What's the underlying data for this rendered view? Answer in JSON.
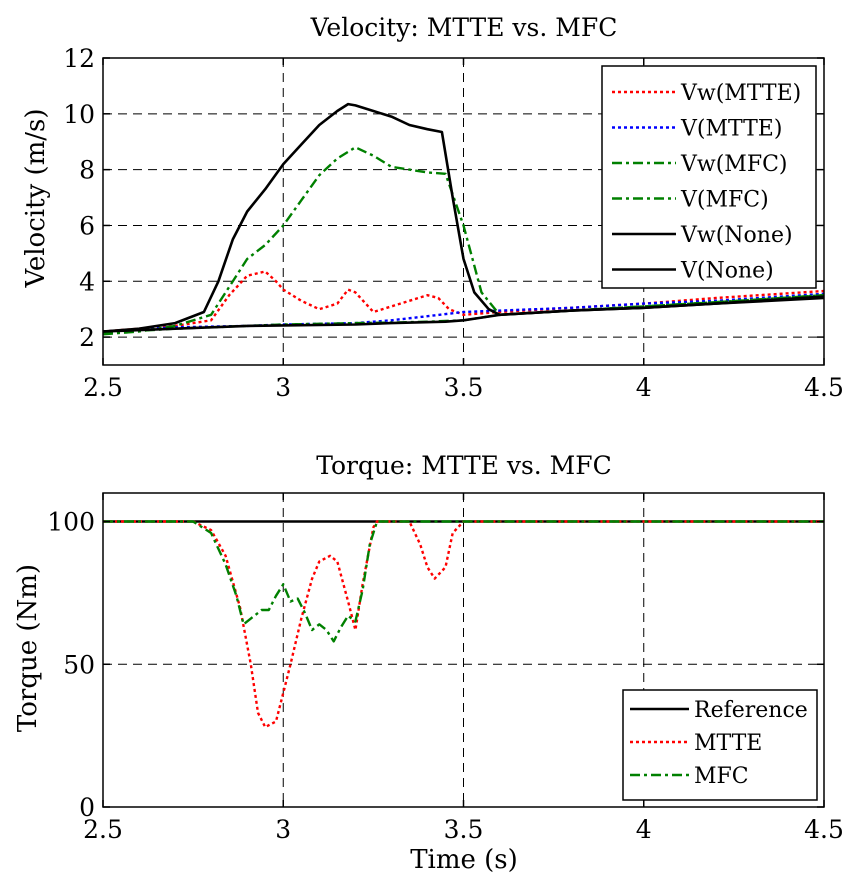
{
  "chart_data": [
    {
      "type": "line",
      "title": "Velocity: MTTE vs. MFC",
      "xlabel": "",
      "ylabel": "Velocity (m/s)",
      "xlim": [
        2.5,
        4.5
      ],
      "ylim": [
        1,
        12
      ],
      "xticks": [
        2.5,
        3,
        3.5,
        4,
        4.5
      ],
      "xtick_labels": [
        "2.5",
        "3",
        "3.5",
        "4",
        "4.5"
      ],
      "yticks": [
        2,
        4,
        6,
        8,
        10,
        12
      ],
      "ytick_labels": [
        "2",
        "4",
        "6",
        "8",
        "10",
        "12"
      ],
      "grid": true,
      "legend_position": "top-right",
      "series": [
        {
          "name": "Vw(MTTE)",
          "color": "#ff0000",
          "style": "dotted",
          "x": [
            2.5,
            2.6,
            2.7,
            2.8,
            2.85,
            2.9,
            2.95,
            2.98,
            3.0,
            3.05,
            3.1,
            3.15,
            3.18,
            3.2,
            3.25,
            3.3,
            3.35,
            3.4,
            3.43,
            3.46,
            3.5,
            3.55,
            3.6,
            3.8,
            4.0,
            4.2,
            4.5
          ],
          "y": [
            2.2,
            2.3,
            2.4,
            2.6,
            3.5,
            4.2,
            4.35,
            4.0,
            3.7,
            3.3,
            3.0,
            3.2,
            3.7,
            3.6,
            2.9,
            3.1,
            3.3,
            3.5,
            3.4,
            3.0,
            2.8,
            2.85,
            2.9,
            3.05,
            3.2,
            3.4,
            3.65
          ]
        },
        {
          "name": "V(MTTE)",
          "color": "#0000ff",
          "style": "dotted",
          "x": [
            2.5,
            2.7,
            2.9,
            3.0,
            3.2,
            3.3,
            3.4,
            3.5,
            3.6,
            3.8,
            4.0,
            4.2,
            4.5
          ],
          "y": [
            2.2,
            2.35,
            2.4,
            2.45,
            2.5,
            2.6,
            2.75,
            2.9,
            2.95,
            3.05,
            3.2,
            3.3,
            3.55
          ]
        },
        {
          "name": "Vw(MFC)",
          "color": "#008000",
          "style": "dashdot",
          "x": [
            2.5,
            2.6,
            2.7,
            2.8,
            2.85,
            2.9,
            2.95,
            3.0,
            3.05,
            3.1,
            3.15,
            3.2,
            3.25,
            3.3,
            3.35,
            3.4,
            3.45,
            3.5,
            3.55,
            3.6,
            3.8,
            4.0,
            4.2,
            4.5
          ],
          "y": [
            2.1,
            2.2,
            2.4,
            2.8,
            3.8,
            4.8,
            5.3,
            6.0,
            6.9,
            7.8,
            8.4,
            8.8,
            8.5,
            8.1,
            8.0,
            7.9,
            7.85,
            6.0,
            3.6,
            2.8,
            2.95,
            3.1,
            3.25,
            3.5
          ]
        },
        {
          "name": "V(MFC)",
          "color": "#008000",
          "style": "dashdot",
          "x": [
            2.5,
            2.7,
            2.9,
            3.0,
            3.2,
            3.3,
            3.4,
            3.5,
            3.55,
            3.6,
            3.8,
            4.0,
            4.2,
            4.5
          ],
          "y": [
            2.15,
            2.3,
            2.4,
            2.45,
            2.5,
            2.52,
            2.55,
            2.6,
            2.7,
            2.8,
            2.95,
            3.1,
            3.25,
            3.5
          ]
        },
        {
          "name": "Vw(None)",
          "color": "#000000",
          "style": "solid",
          "x": [
            2.5,
            2.6,
            2.7,
            2.78,
            2.82,
            2.86,
            2.9,
            2.95,
            3.0,
            3.05,
            3.1,
            3.15,
            3.18,
            3.2,
            3.25,
            3.3,
            3.35,
            3.4,
            3.44,
            3.47,
            3.5,
            3.53,
            3.57,
            3.6,
            3.8,
            4.0,
            4.2,
            4.5
          ],
          "y": [
            2.2,
            2.3,
            2.5,
            2.9,
            4.0,
            5.5,
            6.5,
            7.3,
            8.2,
            8.9,
            9.6,
            10.1,
            10.35,
            10.3,
            10.1,
            9.9,
            9.6,
            9.45,
            9.35,
            7.0,
            4.8,
            3.6,
            3.0,
            2.8,
            2.95,
            3.05,
            3.2,
            3.4
          ]
        },
        {
          "name": "V(None)",
          "color": "#000000",
          "style": "solid",
          "x": [
            2.5,
            2.7,
            2.9,
            3.0,
            3.2,
            3.3,
            3.45,
            3.5,
            3.55,
            3.6,
            3.8,
            4.0,
            4.2,
            4.5
          ],
          "y": [
            2.2,
            2.3,
            2.4,
            2.42,
            2.45,
            2.5,
            2.55,
            2.6,
            2.7,
            2.8,
            2.95,
            3.05,
            3.2,
            3.45
          ]
        }
      ]
    },
    {
      "type": "line",
      "title": "Torque: MTTE vs. MFC",
      "xlabel": "Time (s)",
      "ylabel": "Torque (Nm)",
      "xlim": [
        2.5,
        4.5
      ],
      "ylim": [
        0,
        110
      ],
      "xticks": [
        2.5,
        3,
        3.5,
        4,
        4.5
      ],
      "xtick_labels": [
        "2.5",
        "3",
        "3.5",
        "4",
        "4.5"
      ],
      "yticks": [
        0,
        50,
        100
      ],
      "ytick_labels": [
        "0",
        "50",
        "100"
      ],
      "grid": true,
      "legend_position": "bottom-right",
      "series": [
        {
          "name": "Reference",
          "color": "#000000",
          "style": "solid",
          "x": [
            2.5,
            4.5
          ],
          "y": [
            100,
            100
          ]
        },
        {
          "name": "MTTE",
          "color": "#ff0000",
          "style": "dotted",
          "x": [
            2.5,
            2.75,
            2.8,
            2.84,
            2.88,
            2.91,
            2.93,
            2.95,
            2.98,
            3.0,
            3.02,
            3.05,
            3.08,
            3.1,
            3.13,
            3.15,
            3.18,
            3.2,
            3.22,
            3.25,
            3.26,
            3.35,
            3.38,
            3.4,
            3.42,
            3.45,
            3.47,
            3.5,
            4.5
          ],
          "y": [
            100,
            100,
            97,
            88,
            70,
            50,
            33,
            28,
            30,
            40,
            50,
            66,
            80,
            86,
            88,
            86,
            72,
            62,
            78,
            98,
            100,
            100,
            92,
            84,
            80,
            84,
            96,
            100,
            100
          ]
        },
        {
          "name": "MFC",
          "color": "#008000",
          "style": "dashdot",
          "x": [
            2.5,
            2.75,
            2.8,
            2.84,
            2.87,
            2.89,
            2.91,
            2.94,
            2.96,
            2.98,
            3.0,
            3.02,
            3.04,
            3.06,
            3.08,
            3.1,
            3.12,
            3.14,
            3.16,
            3.18,
            3.2,
            3.22,
            3.24,
            3.26,
            4.5
          ],
          "y": [
            100,
            100,
            96,
            85,
            74,
            64,
            66,
            69,
            69,
            74,
            78,
            72,
            73,
            68,
            62,
            64,
            62,
            58,
            63,
            67,
            65,
            76,
            92,
            100,
            100
          ]
        }
      ]
    }
  ]
}
